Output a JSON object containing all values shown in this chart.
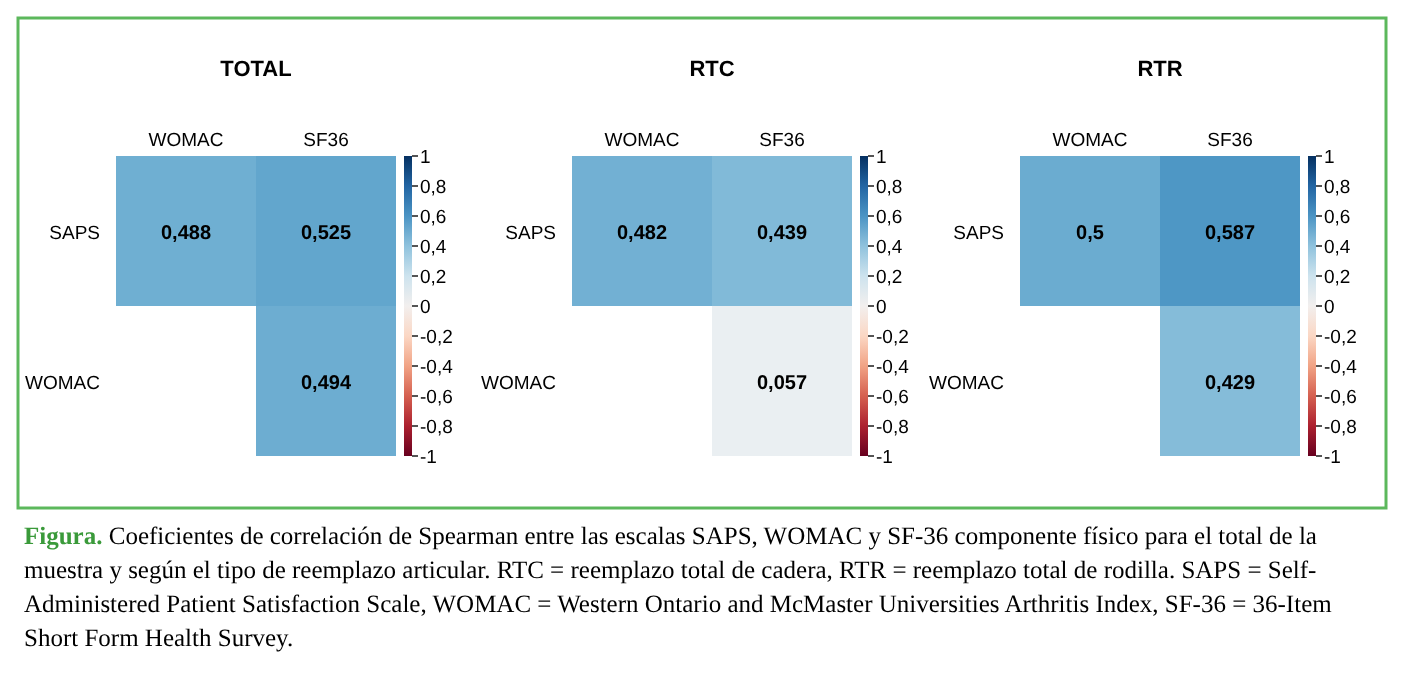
{
  "chart_data": [
    {
      "type": "heatmap",
      "title": "TOTAL",
      "categories": [
        "WOMAC",
        "SF36"
      ],
      "y_categories": [
        "SAPS",
        "WOMAC"
      ],
      "cells": [
        [
          0.488,
          0.525
        ],
        [
          null,
          0.494
        ]
      ],
      "cell_labels": [
        [
          "0,488",
          "0,525"
        ],
        [
          null,
          "0,494"
        ]
      ],
      "clim": [
        -1,
        1
      ],
      "cticks": [
        {
          "value": 1,
          "label": "1"
        },
        {
          "value": 0.8,
          "label": "0,8"
        },
        {
          "value": 0.6,
          "label": "0,6"
        },
        {
          "value": 0.4,
          "label": "0,4"
        },
        {
          "value": 0.2,
          "label": "0,2"
        },
        {
          "value": 0,
          "label": "0"
        },
        {
          "value": -0.2,
          "label": "-0,2"
        },
        {
          "value": -0.4,
          "label": "-0,4"
        },
        {
          "value": -0.6,
          "label": "-0,6"
        },
        {
          "value": -0.8,
          "label": "-0,8"
        },
        {
          "value": -1,
          "label": "-1"
        }
      ],
      "annotations": [
        "Figura.",
        "Coeficientes de correlación de Spearman entre las escalas SAPS, WOMAC y SF-36 componente físico para el total de la muestra y según el tipo de reemplazo articular. RTC = reemplazo total de cadera, RTR = reemplazo total de rodilla. SAPS = Self-Administered Patient Satisfaction Scale, WOMAC = Western Ontario and McMaster Universities Arthritis Index, SF-36 = 36-Item Short Form Health Survey."
      ]
    },
    {
      "type": "heatmap",
      "title": "RTC",
      "categories": [
        "WOMAC",
        "SF36"
      ],
      "y_categories": [
        "SAPS",
        "WOMAC"
      ],
      "cells": [
        [
          0.482,
          0.439
        ],
        [
          null,
          0.057
        ]
      ],
      "cell_labels": [
        [
          "0,482",
          "0,439"
        ],
        [
          null,
          "0,057"
        ]
      ],
      "clim": [
        -1,
        1
      ],
      "cticks": [
        {
          "value": 1,
          "label": "1"
        },
        {
          "value": 0.8,
          "label": "0,8"
        },
        {
          "value": 0.6,
          "label": "0,6"
        },
        {
          "value": 0.4,
          "label": "0,4"
        },
        {
          "value": 0.2,
          "label": "0,2"
        },
        {
          "value": 0,
          "label": "0"
        },
        {
          "value": -0.2,
          "label": "-0,2"
        },
        {
          "value": -0.4,
          "label": "-0,4"
        },
        {
          "value": -0.6,
          "label": "-0,6"
        },
        {
          "value": -0.8,
          "label": "-0,8"
        },
        {
          "value": -1,
          "label": "-1"
        }
      ]
    },
    {
      "type": "heatmap",
      "title": "RTR",
      "categories": [
        "WOMAC",
        "SF36"
      ],
      "y_categories": [
        "SAPS",
        "WOMAC"
      ],
      "cells": [
        [
          0.5,
          0.587
        ],
        [
          null,
          0.429
        ]
      ],
      "cell_labels": [
        [
          "0,5",
          "0,587"
        ],
        [
          null,
          "0,429"
        ]
      ],
      "clim": [
        -1,
        1
      ],
      "cticks": [
        {
          "value": 1,
          "label": "1"
        },
        {
          "value": 0.8,
          "label": "0,8"
        },
        {
          "value": 0.6,
          "label": "0,6"
        },
        {
          "value": 0.4,
          "label": "0,4"
        },
        {
          "value": 0.2,
          "label": "0,2"
        },
        {
          "value": 0,
          "label": "0"
        },
        {
          "value": -0.2,
          "label": "-0,2"
        },
        {
          "value": -0.4,
          "label": "-0,4"
        },
        {
          "value": -0.6,
          "label": "-0,6"
        },
        {
          "value": -0.8,
          "label": "-0,8"
        },
        {
          "value": -1,
          "label": "-1"
        }
      ]
    }
  ]
}
